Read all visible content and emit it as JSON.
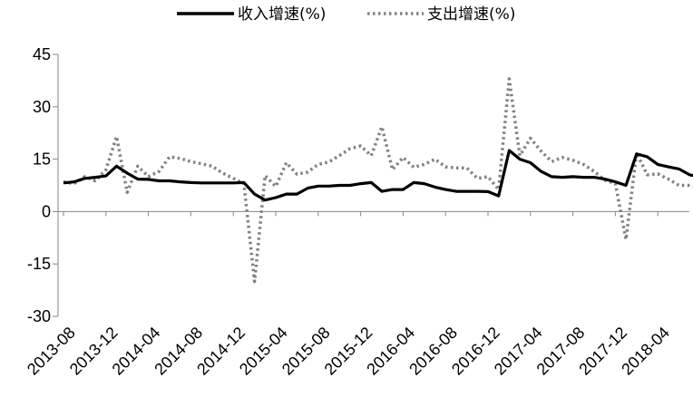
{
  "chart_data": {
    "type": "line",
    "title": "",
    "xlabel": "",
    "ylabel": "",
    "ylim": [
      -30,
      45
    ],
    "yticks": [
      -30,
      -15,
      0,
      15,
      30,
      45
    ],
    "x_tick_labels": [
      "2013-08",
      "2013-12",
      "2014-04",
      "2014-08",
      "2014-12",
      "2015-04",
      "2015-08",
      "2015-12",
      "2016-04",
      "2016-08",
      "2016-12",
      "2017-04",
      "2017-08",
      "2017-12",
      "2018-04"
    ],
    "legend_placement": "top-center",
    "grid": false,
    "series": [
      {
        "name": "收入增速(%)",
        "style": "solid",
        "color": "#000000",
        "points": [
          [
            "2013-08",
            8.2
          ],
          [
            "2013-09",
            8.5
          ],
          [
            "2013-10",
            9.5
          ],
          [
            "2013-11",
            9.8
          ],
          [
            "2013-12",
            10.2
          ],
          [
            "2014-01",
            13.0
          ],
          [
            "2014-02",
            11.0
          ],
          [
            "2014-03",
            9.3
          ],
          [
            "2014-04",
            9.2
          ],
          [
            "2014-05",
            8.8
          ],
          [
            "2014-06",
            8.8
          ],
          [
            "2014-07",
            8.5
          ],
          [
            "2014-08",
            8.3
          ],
          [
            "2014-09",
            8.2
          ],
          [
            "2014-10",
            8.2
          ],
          [
            "2014-11",
            8.2
          ],
          [
            "2014-12",
            8.2
          ],
          [
            "2015-01",
            8.3
          ],
          [
            "2015-02",
            5.0
          ],
          [
            "2015-03",
            3.3
          ],
          [
            "2015-04",
            4.0
          ],
          [
            "2015-05",
            5.0
          ],
          [
            "2015-06",
            5.0
          ],
          [
            "2015-07",
            6.7
          ],
          [
            "2015-08",
            7.3
          ],
          [
            "2015-09",
            7.3
          ],
          [
            "2015-10",
            7.5
          ],
          [
            "2015-11",
            7.5
          ],
          [
            "2015-12",
            8.0
          ],
          [
            "2016-01",
            8.3
          ],
          [
            "2016-02",
            5.8
          ],
          [
            "2016-03",
            6.3
          ],
          [
            "2016-04",
            6.3
          ],
          [
            "2016-05",
            8.3
          ],
          [
            "2016-06",
            8.0
          ],
          [
            "2016-07",
            7.0
          ],
          [
            "2016-08",
            6.3
          ],
          [
            "2016-09",
            5.8
          ],
          [
            "2016-10",
            5.8
          ],
          [
            "2016-11",
            5.8
          ],
          [
            "2016-12",
            5.7
          ],
          [
            "2017-01",
            4.5
          ],
          [
            "2017-02",
            17.5
          ],
          [
            "2017-03",
            15.0
          ],
          [
            "2017-04",
            14.0
          ],
          [
            "2017-05",
            11.5
          ],
          [
            "2017-06",
            10.0
          ],
          [
            "2017-07",
            9.8
          ],
          [
            "2017-08",
            10.0
          ],
          [
            "2017-09",
            9.8
          ],
          [
            "2017-10",
            9.8
          ],
          [
            "2017-11",
            9.3
          ],
          [
            "2017-12",
            8.5
          ],
          [
            "2018-01",
            7.5
          ],
          [
            "2018-02",
            16.5
          ],
          [
            "2018-03",
            15.7
          ],
          [
            "2018-04",
            13.5
          ],
          [
            "2018-05",
            12.8
          ],
          [
            "2018-06",
            12.2
          ],
          [
            "2018-07",
            10.5
          ],
          [
            "2018-08",
            10.0
          ]
        ]
      },
      {
        "name": "支出增速(%)",
        "style": "dotted",
        "color": "#808080",
        "points": [
          [
            "2013-08",
            8.5
          ],
          [
            "2013-09",
            8.0
          ],
          [
            "2013-10",
            10.0
          ],
          [
            "2013-11",
            8.8
          ],
          [
            "2013-12",
            12.0
          ],
          [
            "2014-01",
            21.5
          ],
          [
            "2014-02",
            5.5
          ],
          [
            "2014-03",
            13.0
          ],
          [
            "2014-04",
            10.0
          ],
          [
            "2014-05",
            11.5
          ],
          [
            "2014-06",
            15.7
          ],
          [
            "2014-07",
            15.2
          ],
          [
            "2014-08",
            14.3
          ],
          [
            "2014-09",
            13.7
          ],
          [
            "2014-10",
            13.0
          ],
          [
            "2014-11",
            11.0
          ],
          [
            "2014-12",
            9.5
          ],
          [
            "2015-01",
            8.0
          ],
          [
            "2015-02",
            -20.0
          ],
          [
            "2015-03",
            10.3
          ],
          [
            "2015-04",
            7.2
          ],
          [
            "2015-05",
            14.0
          ],
          [
            "2015-06",
            10.7
          ],
          [
            "2015-07",
            11.3
          ],
          [
            "2015-08",
            13.5
          ],
          [
            "2015-09",
            14.2
          ],
          [
            "2015-10",
            16.0
          ],
          [
            "2015-11",
            18.0
          ],
          [
            "2015-12",
            18.8
          ],
          [
            "2016-01",
            16.0
          ],
          [
            "2016-02",
            24.3
          ],
          [
            "2016-03",
            12.0
          ],
          [
            "2016-04",
            15.5
          ],
          [
            "2016-05",
            12.7
          ],
          [
            "2016-06",
            13.5
          ],
          [
            "2016-07",
            15.0
          ],
          [
            "2016-08",
            12.8
          ],
          [
            "2016-09",
            12.5
          ],
          [
            "2016-10",
            12.5
          ],
          [
            "2016-11",
            9.5
          ],
          [
            "2016-12",
            10.0
          ],
          [
            "2017-01",
            6.3
          ],
          [
            "2017-02",
            38.0
          ],
          [
            "2017-03",
            16.0
          ],
          [
            "2017-04",
            21.0
          ],
          [
            "2017-05",
            17.3
          ],
          [
            "2017-06",
            14.3
          ],
          [
            "2017-07",
            15.5
          ],
          [
            "2017-08",
            14.7
          ],
          [
            "2017-09",
            13.5
          ],
          [
            "2017-10",
            11.5
          ],
          [
            "2017-11",
            9.0
          ],
          [
            "2017-12",
            8.0
          ],
          [
            "2018-01",
            -8.0
          ],
          [
            "2018-02",
            16.8
          ],
          [
            "2018-03",
            10.5
          ],
          [
            "2018-04",
            10.8
          ],
          [
            "2018-05",
            9.3
          ],
          [
            "2018-06",
            7.5
          ],
          [
            "2018-07",
            7.5
          ],
          [
            "2018-08",
            7.0
          ]
        ]
      }
    ]
  }
}
